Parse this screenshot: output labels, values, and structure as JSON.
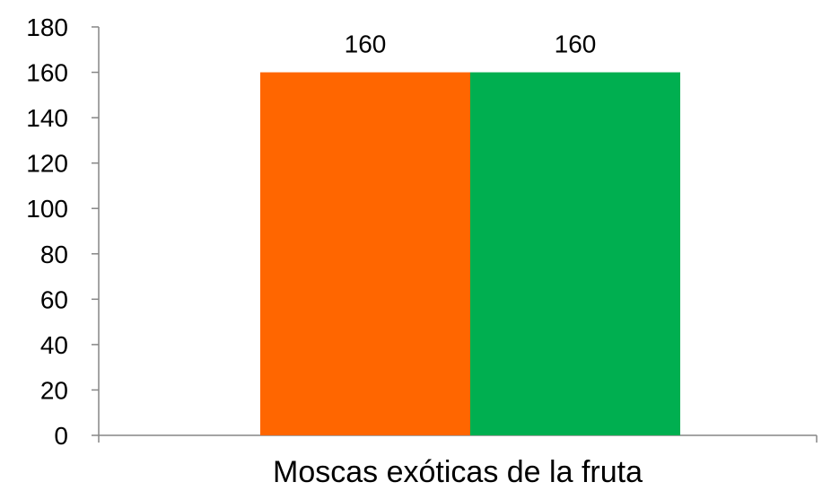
{
  "chart_data": {
    "type": "bar",
    "categories": [
      "Moscas exóticas de la fruta"
    ],
    "series": [
      {
        "values": [
          160
        ],
        "color": "#FF6600"
      },
      {
        "values": [
          160
        ],
        "color": "#00AF50"
      }
    ],
    "data_labels": [
      "160",
      "160"
    ],
    "ylim": [
      0,
      180
    ],
    "yticks": [
      0,
      20,
      40,
      60,
      80,
      100,
      120,
      140,
      160,
      180
    ],
    "title": "",
    "xlabel": "",
    "ylabel": "",
    "grid": false,
    "legend": "none"
  }
}
